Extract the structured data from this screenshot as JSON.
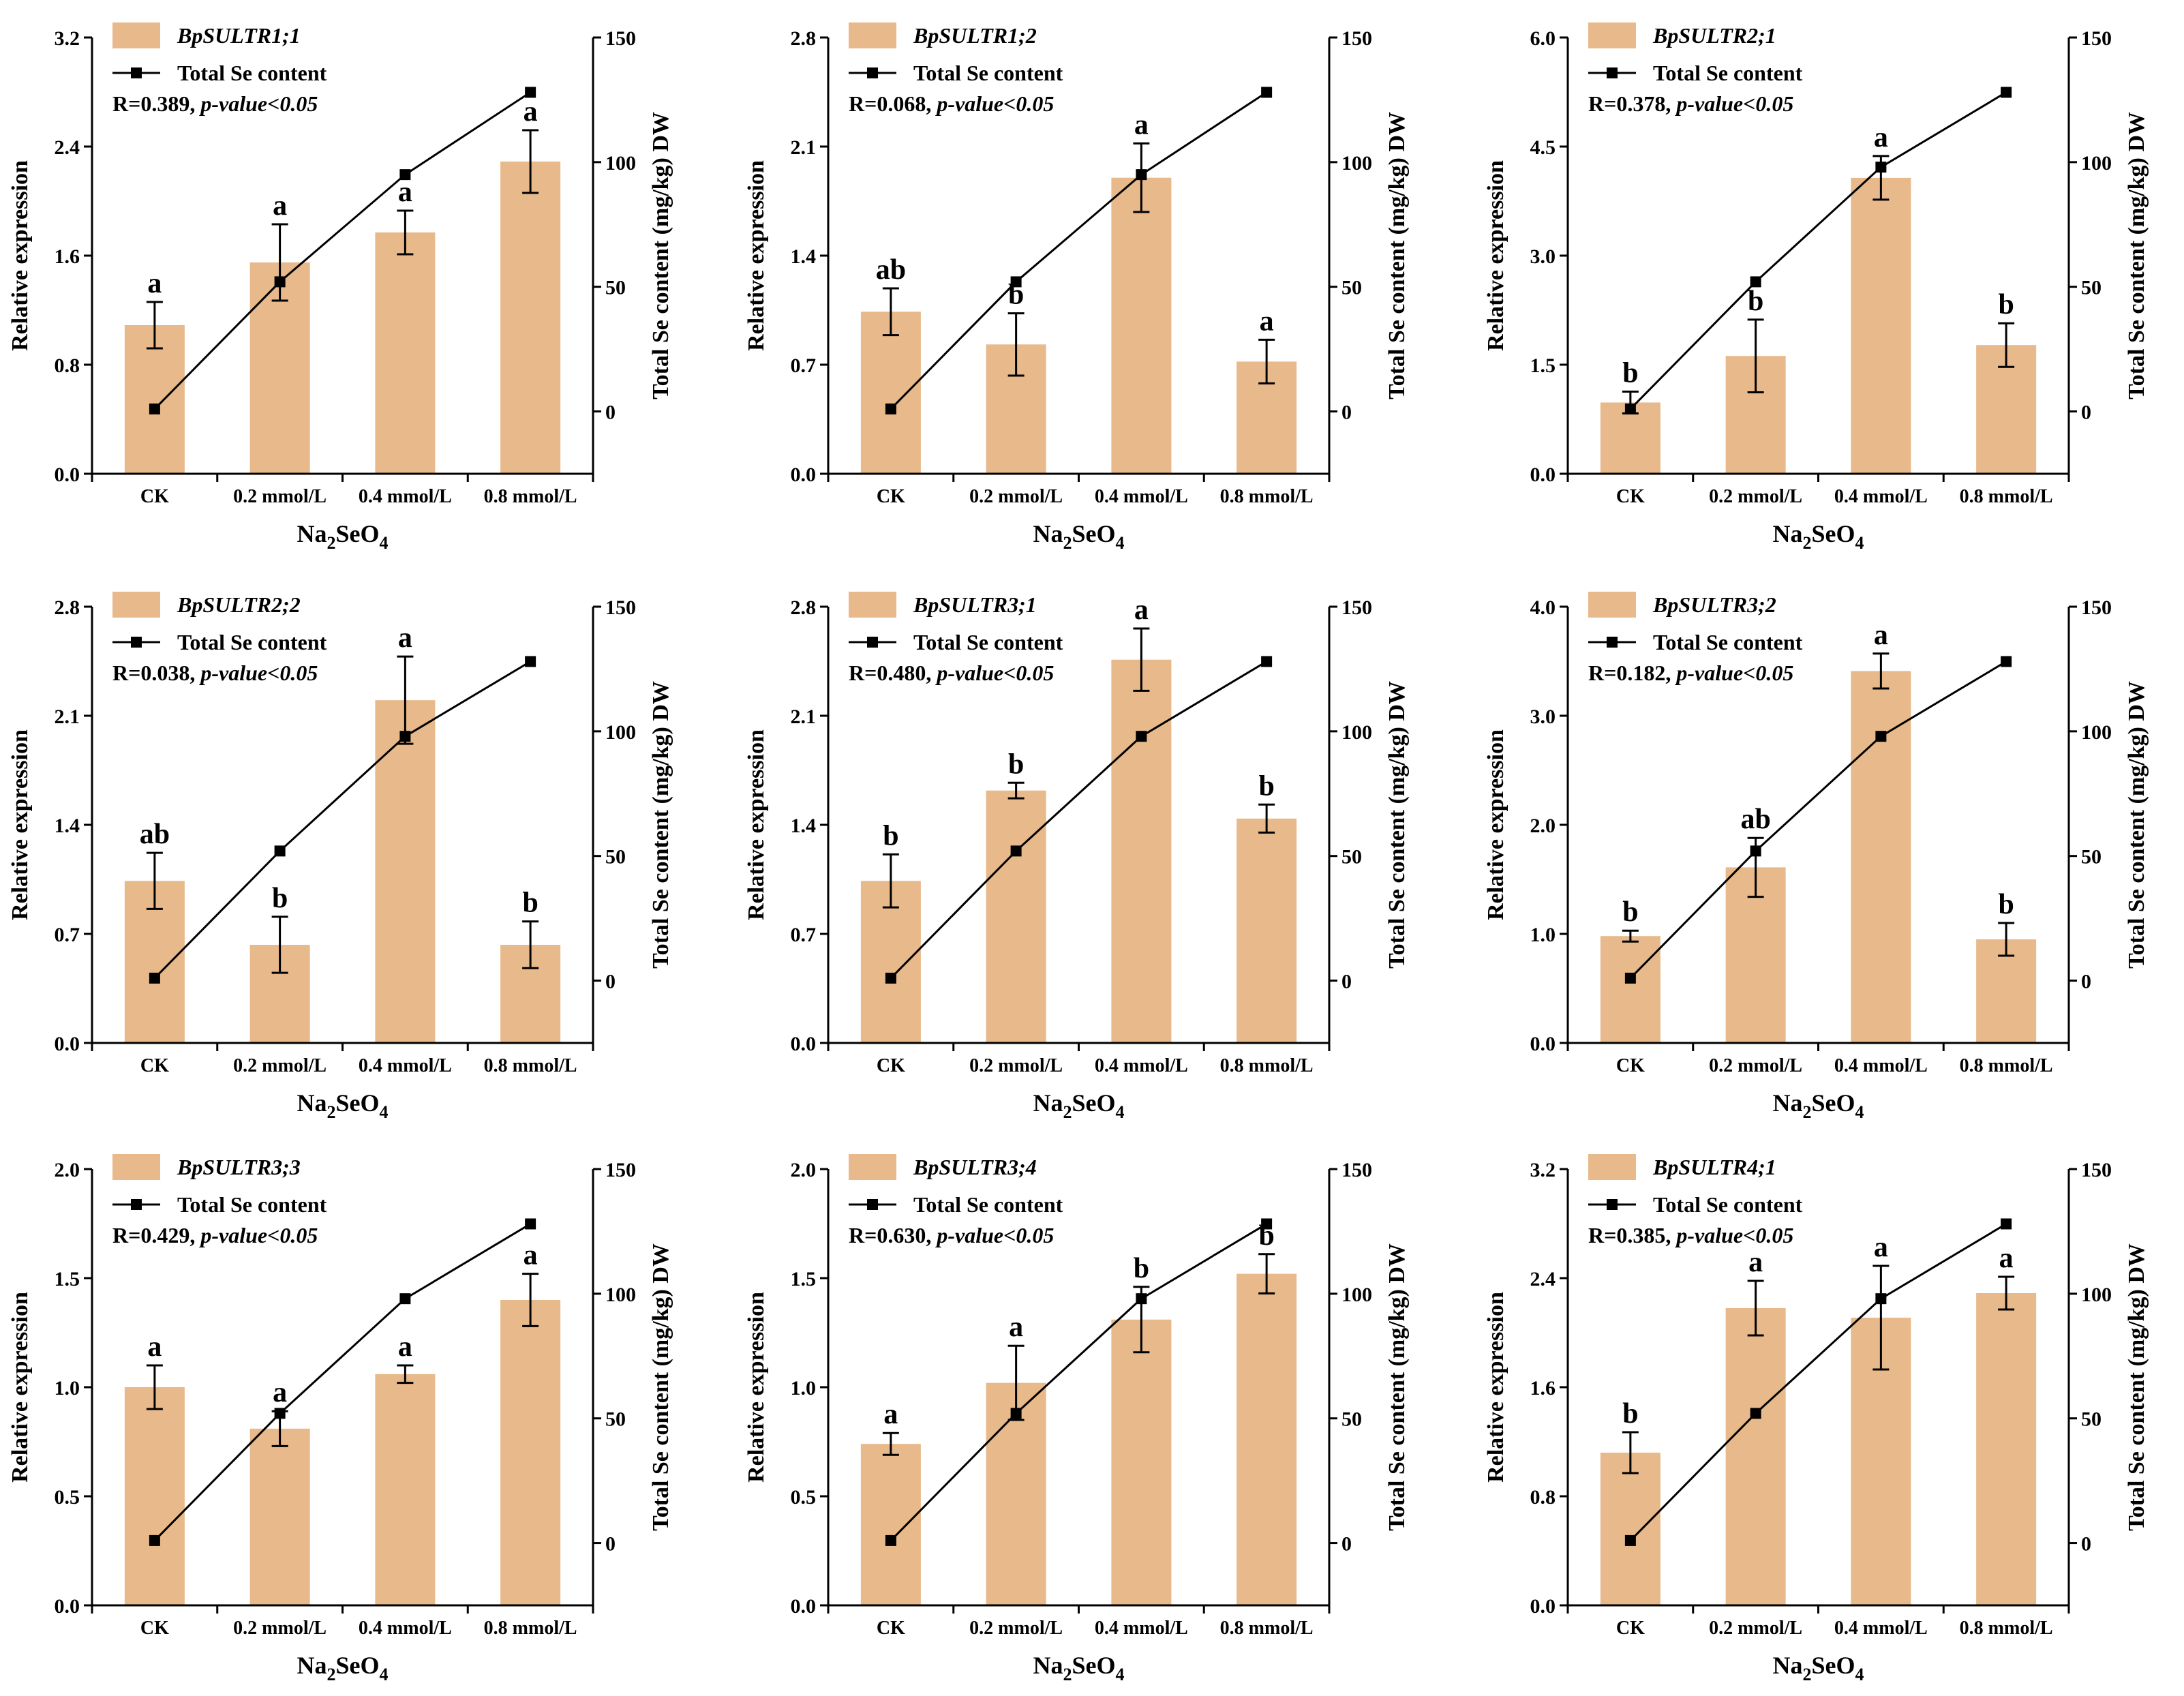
{
  "chart_data": [
    {
      "type": "bar+line",
      "series_names": {
        "bar": "BpSULTR1;1",
        "line": "Total Se content"
      },
      "correlation": "R=0.389,",
      "pvalue": "p-value<0.05",
      "categories": [
        "CK",
        "0.2 mmol/L",
        "0.4 mmol/L",
        "0.8 mmol/L"
      ],
      "values": [
        1.09,
        1.55,
        1.77,
        2.29
      ],
      "errors": [
        0.17,
        0.28,
        0.16,
        0.23
      ],
      "letters": [
        "a",
        "a",
        "a",
        "a"
      ],
      "se_values": [
        1,
        52,
        95,
        128
      ],
      "ylim": [
        0,
        3.2
      ],
      "yticks": [
        0.0,
        0.8,
        1.6,
        2.4,
        3.2
      ],
      "y2lim": [
        -25,
        150
      ],
      "y2ticks": [
        0,
        50,
        100,
        150
      ],
      "xlabel_main": "Na",
      "xlabel_sub1": "2",
      "xlabel_mid": "SeO",
      "xlabel_sub2": "4",
      "ylabel": "Relative expression",
      "y2label": "Total Se content (mg/kg) DW"
    },
    {
      "type": "bar+line",
      "series_names": {
        "bar": "BpSULTR1;2",
        "line": "Total Se content"
      },
      "correlation": "R=0.068,",
      "pvalue": "p-value<0.05",
      "categories": [
        "CK",
        "0.2 mmol/L",
        "0.4 mmol/L",
        "0.8 mmol/L"
      ],
      "values": [
        1.04,
        0.83,
        1.9,
        0.72
      ],
      "errors": [
        0.15,
        0.2,
        0.22,
        0.14
      ],
      "letters": [
        "ab",
        "b",
        "a",
        "a"
      ],
      "se_values": [
        1,
        52,
        95,
        128
      ],
      "ylim": [
        0,
        2.8
      ],
      "yticks": [
        0.0,
        0.7,
        1.4,
        2.1,
        2.8
      ],
      "y2lim": [
        -25,
        150
      ],
      "y2ticks": [
        0,
        50,
        100,
        150
      ],
      "xlabel_main": "Na",
      "xlabel_sub1": "2",
      "xlabel_mid": "SeO",
      "xlabel_sub2": "4",
      "ylabel": "Relative expression",
      "y2label": "Total Se content (mg/kg) DW"
    },
    {
      "type": "bar+line",
      "series_names": {
        "bar": "BpSULTR2;1",
        "line": "Total Se content"
      },
      "correlation": "R=0.378,",
      "pvalue": "p-value<0.05",
      "categories": [
        "CK",
        "0.2 mmol/L",
        "0.4 mmol/L",
        "0.8 mmol/L"
      ],
      "values": [
        0.98,
        1.62,
        4.07,
        1.77
      ],
      "errors": [
        0.15,
        0.5,
        0.3,
        0.3
      ],
      "letters": [
        "b",
        "b",
        "a",
        "b"
      ],
      "se_values": [
        1,
        52,
        98,
        128
      ],
      "ylim": [
        0,
        6.0
      ],
      "yticks": [
        0.0,
        1.5,
        3.0,
        4.5,
        6.0
      ],
      "y2lim": [
        -25,
        150
      ],
      "y2ticks": [
        0,
        50,
        100,
        150
      ],
      "xlabel_main": "Na",
      "xlabel_sub1": "2",
      "xlabel_mid": "SeO",
      "xlabel_sub2": "4",
      "ylabel": "Relative expression",
      "y2label": "Total Se content (mg/kg) DW"
    },
    {
      "type": "bar+line",
      "series_names": {
        "bar": "BpSULTR2;2",
        "line": "Total Se content"
      },
      "correlation": "R=0.038,",
      "pvalue": "p-value<0.05",
      "categories": [
        "CK",
        "0.2 mmol/L",
        "0.4 mmol/L",
        "0.8 mmol/L"
      ],
      "values": [
        1.04,
        0.63,
        2.2,
        0.63
      ],
      "errors": [
        0.18,
        0.18,
        0.28,
        0.15
      ],
      "letters": [
        "ab",
        "b",
        "a",
        "b"
      ],
      "se_values": [
        1,
        52,
        98,
        128
      ],
      "ylim": [
        0,
        2.8
      ],
      "yticks": [
        0.0,
        0.7,
        1.4,
        2.1,
        2.8
      ],
      "y2lim": [
        -25,
        150
      ],
      "y2ticks": [
        0,
        50,
        100,
        150
      ],
      "xlabel_main": "Na",
      "xlabel_sub1": "2",
      "xlabel_mid": "SeO",
      "xlabel_sub2": "4",
      "ylabel": "Relative expression",
      "y2label": "Total Se content (mg/kg) DW"
    },
    {
      "type": "bar+line",
      "series_names": {
        "bar": "BpSULTR3;1",
        "line": "Total Se content"
      },
      "correlation": "R=0.480,",
      "pvalue": "p-value<0.05",
      "categories": [
        "CK",
        "0.2 mmol/L",
        "0.4 mmol/L",
        "0.8 mmol/L"
      ],
      "values": [
        1.04,
        1.62,
        2.46,
        1.44
      ],
      "errors": [
        0.17,
        0.05,
        0.2,
        0.09
      ],
      "letters": [
        "b",
        "b",
        "a",
        "b"
      ],
      "se_values": [
        1,
        52,
        98,
        128
      ],
      "ylim": [
        0,
        2.8
      ],
      "yticks": [
        0.0,
        0.7,
        1.4,
        2.1,
        2.8
      ],
      "y2lim": [
        -25,
        150
      ],
      "y2ticks": [
        0,
        50,
        100,
        150
      ],
      "xlabel_main": "Na",
      "xlabel_sub1": "2",
      "xlabel_mid": "SeO",
      "xlabel_sub2": "4",
      "ylabel": "Relative expression",
      "y2label": "Total Se content (mg/kg) DW"
    },
    {
      "type": "bar+line",
      "series_names": {
        "bar": "BpSULTR3;2",
        "line": "Total Se content"
      },
      "correlation": "R=0.182,",
      "pvalue": "p-value<0.05",
      "categories": [
        "CK",
        "0.2 mmol/L",
        "0.4 mmol/L",
        "0.8 mmol/L"
      ],
      "values": [
        0.98,
        1.61,
        3.41,
        0.95
      ],
      "errors": [
        0.05,
        0.27,
        0.16,
        0.15
      ],
      "letters": [
        "b",
        "ab",
        "a",
        "b"
      ],
      "se_values": [
        1,
        52,
        98,
        128
      ],
      "ylim": [
        0,
        4.0
      ],
      "yticks": [
        0.0,
        1.0,
        2.0,
        3.0,
        4.0
      ],
      "y2lim": [
        -25,
        150
      ],
      "y2ticks": [
        0,
        50,
        100,
        150
      ],
      "xlabel_main": "Na",
      "xlabel_sub1": "2",
      "xlabel_mid": "SeO",
      "xlabel_sub2": "4",
      "ylabel": "Relative expression",
      "y2label": "Total Se content (mg/kg) DW"
    },
    {
      "type": "bar+line",
      "series_names": {
        "bar": "BpSULTR3;3",
        "line": "Total Se content"
      },
      "correlation": "R=0.429,",
      "pvalue": "p-value<0.05",
      "categories": [
        "CK",
        "0.2 mmol/L",
        "0.4 mmol/L",
        "0.8 mmol/L"
      ],
      "values": [
        1.0,
        0.81,
        1.06,
        1.4
      ],
      "errors": [
        0.1,
        0.08,
        0.04,
        0.12
      ],
      "letters": [
        "a",
        "a",
        "a",
        "a"
      ],
      "se_values": [
        1,
        52,
        98,
        128
      ],
      "ylim": [
        0,
        2.0
      ],
      "yticks": [
        0.0,
        0.5,
        1.0,
        1.5,
        2.0
      ],
      "y2lim": [
        -25,
        150
      ],
      "y2ticks": [
        0,
        50,
        100,
        150
      ],
      "xlabel_main": "Na",
      "xlabel_sub1": "2",
      "xlabel_mid": "SeO",
      "xlabel_sub2": "4",
      "ylabel": "Relative expression",
      "y2label": "Total Se content (mg/kg) DW"
    },
    {
      "type": "bar+line",
      "series_names": {
        "bar": "BpSULTR3;4",
        "line": "Total Se content"
      },
      "correlation": "R=0.630,",
      "pvalue": "p-value<0.05",
      "categories": [
        "CK",
        "0.2 mmol/L",
        "0.4 mmol/L",
        "0.8 mmol/L"
      ],
      "values": [
        0.74,
        1.02,
        1.31,
        1.52
      ],
      "errors": [
        0.05,
        0.17,
        0.15,
        0.09
      ],
      "letters": [
        "a",
        "a",
        "b",
        "b"
      ],
      "se_values": [
        1,
        52,
        98,
        128
      ],
      "ylim": [
        0,
        2.0
      ],
      "yticks": [
        0.0,
        0.5,
        1.0,
        1.5,
        2.0
      ],
      "y2lim": [
        -25,
        150
      ],
      "y2ticks": [
        0,
        50,
        100,
        150
      ],
      "xlabel_main": "Na",
      "xlabel_sub1": "2",
      "xlabel_mid": "SeO",
      "xlabel_sub2": "4",
      "ylabel": "Relative expression",
      "y2label": "Total Se content (mg/kg) DW"
    },
    {
      "type": "bar+line",
      "series_names": {
        "bar": "BpSULTR4;1",
        "line": "Total Se content"
      },
      "correlation": "R=0.385,",
      "pvalue": "p-value<0.05",
      "categories": [
        "CK",
        "0.2 mmol/L",
        "0.4 mmol/L",
        "0.8 mmol/L"
      ],
      "values": [
        1.12,
        2.18,
        2.11,
        2.29
      ],
      "errors": [
        0.15,
        0.2,
        0.38,
        0.12
      ],
      "letters": [
        "b",
        "a",
        "a",
        "a"
      ],
      "se_values": [
        1,
        52,
        98,
        128
      ],
      "ylim": [
        0,
        3.2
      ],
      "yticks": [
        0.0,
        0.8,
        1.6,
        2.4,
        3.2
      ],
      "y2lim": [
        -25,
        150
      ],
      "y2ticks": [
        0,
        50,
        100,
        150
      ],
      "xlabel_main": "Na",
      "xlabel_sub1": "2",
      "xlabel_mid": "SeO",
      "xlabel_sub2": "4",
      "ylabel": "Relative expression",
      "y2label": "Total Se content (mg/kg) DW"
    }
  ],
  "colors": {
    "bar": "#e8b98a",
    "line": "#000000"
  }
}
